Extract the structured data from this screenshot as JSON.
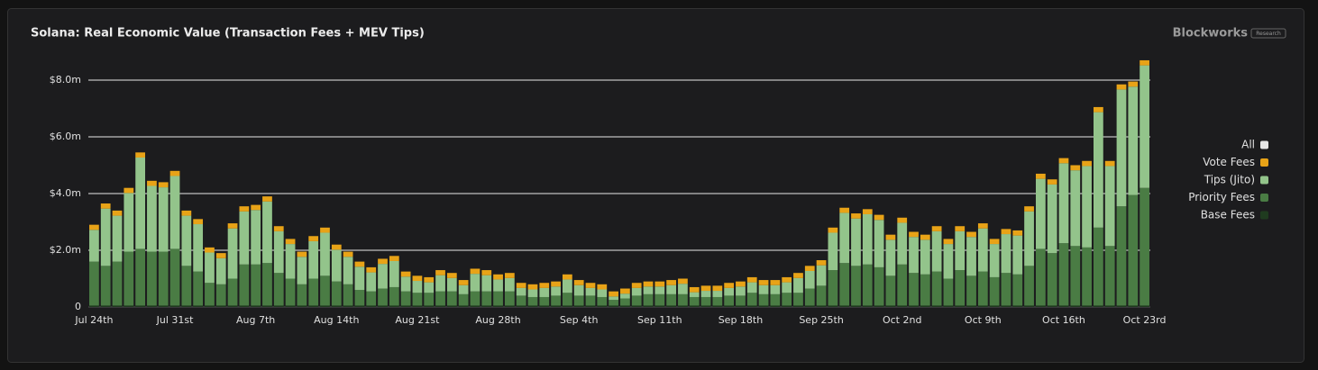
{
  "chart_data": {
    "type": "bar",
    "stacked": true,
    "title": "Solana: Real Economic Value (Transaction Fees + MEV Tips)",
    "brand": "Blockworks",
    "badge": "Research",
    "legend_toggle": {
      "label": "All",
      "color": "#e6e6e6"
    },
    "grid": true,
    "legend_position": "right",
    "categories": [
      "Jul 24th",
      null,
      null,
      null,
      null,
      null,
      null,
      "Jul 31st",
      null,
      null,
      null,
      null,
      null,
      null,
      "Aug 7th",
      null,
      null,
      null,
      null,
      null,
      null,
      "Aug 14th",
      null,
      null,
      null,
      null,
      null,
      null,
      "Aug 21st",
      null,
      null,
      null,
      null,
      null,
      null,
      "Aug 28th",
      null,
      null,
      null,
      null,
      null,
      null,
      "Sep 4th",
      null,
      null,
      null,
      null,
      null,
      null,
      "Sep 11th",
      null,
      null,
      null,
      null,
      null,
      null,
      "Sep 18th",
      null,
      null,
      null,
      null,
      null,
      null,
      "Sep 25th",
      null,
      null,
      null,
      null,
      null,
      null,
      "Oct 2nd",
      null,
      null,
      null,
      null,
      null,
      null,
      "Oct 9th",
      null,
      null,
      null,
      null,
      null,
      null,
      "Oct 16th",
      null,
      null,
      null,
      null,
      null,
      null,
      "Oct 23rd"
    ],
    "ylim": [
      0,
      9
    ],
    "yticks": [
      0,
      {
        "value": 2,
        "label": "$2.0m"
      },
      {
        "value": 4,
        "label": "$4.0m"
      },
      {
        "value": 6,
        "label": "$6.0m"
      },
      {
        "value": 8,
        "label": "$8.0m"
      }
    ],
    "series": [
      {
        "name": "Base Fees",
        "color": "#1f3b1f",
        "values": [
          0.05,
          0.05,
          0.05,
          0.05,
          0.05,
          0.05,
          0.05,
          0.05,
          0.05,
          0.05,
          0.05,
          0.05,
          0.05,
          0.05,
          0.05,
          0.05,
          0.05,
          0.05,
          0.05,
          0.05,
          0.05,
          0.05,
          0.05,
          0.05,
          0.05,
          0.05,
          0.05,
          0.05,
          0.05,
          0.05,
          0.05,
          0.05,
          0.05,
          0.05,
          0.05,
          0.05,
          0.05,
          0.05,
          0.05,
          0.05,
          0.05,
          0.05,
          0.05,
          0.05,
          0.05,
          0.05,
          0.05,
          0.05,
          0.05,
          0.05,
          0.05,
          0.05,
          0.05,
          0.05,
          0.05,
          0.05,
          0.05,
          0.05,
          0.05,
          0.05,
          0.05,
          0.05,
          0.05,
          0.05,
          0.05,
          0.05,
          0.05,
          0.05,
          0.05,
          0.05,
          0.05,
          0.05,
          0.05,
          0.05,
          0.05,
          0.05,
          0.05,
          0.05,
          0.05,
          0.05,
          0.05,
          0.05,
          0.05,
          0.05,
          0.05,
          0.05,
          0.05,
          0.05,
          0.05,
          0.05,
          0.05,
          0.05
        ]
      },
      {
        "name": "Priority Fees",
        "color": "#4a7c44",
        "values": [
          1.55,
          1.4,
          1.55,
          1.9,
          2.0,
          1.9,
          1.9,
          2.0,
          1.4,
          1.2,
          0.8,
          0.75,
          0.95,
          1.45,
          1.45,
          1.5,
          1.15,
          0.95,
          0.75,
          0.95,
          1.05,
          0.85,
          0.75,
          0.55,
          0.5,
          0.6,
          0.65,
          0.5,
          0.45,
          0.45,
          0.5,
          0.5,
          0.4,
          0.5,
          0.5,
          0.5,
          0.5,
          0.35,
          0.3,
          0.3,
          0.35,
          0.45,
          0.35,
          0.35,
          0.3,
          0.2,
          0.25,
          0.35,
          0.4,
          0.4,
          0.4,
          0.4,
          0.3,
          0.3,
          0.3,
          0.35,
          0.35,
          0.45,
          0.4,
          0.4,
          0.45,
          0.45,
          0.6,
          0.7,
          1.25,
          1.5,
          1.4,
          1.45,
          1.35,
          1.05,
          1.45,
          1.15,
          1.1,
          1.2,
          0.95,
          1.25,
          1.05,
          1.2,
          1.0,
          1.15,
          1.1,
          1.4,
          2.0,
          1.85,
          2.2,
          2.1,
          2.05,
          2.75,
          2.1,
          3.5,
          3.9,
          4.15
        ]
      },
      {
        "name": "Tips (Jito)",
        "color": "#93c48b",
        "values": [
          1.12,
          2.02,
          1.62,
          2.07,
          3.22,
          2.32,
          2.27,
          2.57,
          1.77,
          1.67,
          1.07,
          0.92,
          1.77,
          1.87,
          1.92,
          2.17,
          1.47,
          1.22,
          0.97,
          1.32,
          1.52,
          1.12,
          0.97,
          0.82,
          0.67,
          0.87,
          0.92,
          0.52,
          0.42,
          0.37,
          0.57,
          0.47,
          0.32,
          0.62,
          0.57,
          0.42,
          0.47,
          0.27,
          0.27,
          0.32,
          0.32,
          0.47,
          0.37,
          0.27,
          0.27,
          0.12,
          0.17,
          0.27,
          0.27,
          0.27,
          0.32,
          0.37,
          0.17,
          0.22,
          0.22,
          0.27,
          0.32,
          0.37,
          0.32,
          0.32,
          0.37,
          0.52,
          0.62,
          0.72,
          1.32,
          1.77,
          1.67,
          1.77,
          1.67,
          1.27,
          1.47,
          1.27,
          1.22,
          1.42,
          1.22,
          1.37,
          1.37,
          1.52,
          1.17,
          1.37,
          1.37,
          1.92,
          2.47,
          2.42,
          2.82,
          2.67,
          2.87,
          4.07,
          2.82,
          4.12,
          3.82,
          4.32
        ]
      },
      {
        "name": "Vote Fees",
        "color": "#e8a317",
        "values": [
          0.18,
          0.18,
          0.18,
          0.18,
          0.18,
          0.18,
          0.18,
          0.18,
          0.18,
          0.18,
          0.18,
          0.18,
          0.18,
          0.18,
          0.18,
          0.18,
          0.18,
          0.18,
          0.18,
          0.18,
          0.18,
          0.18,
          0.18,
          0.18,
          0.18,
          0.18,
          0.18,
          0.18,
          0.18,
          0.18,
          0.18,
          0.18,
          0.18,
          0.18,
          0.18,
          0.18,
          0.18,
          0.18,
          0.18,
          0.18,
          0.18,
          0.18,
          0.18,
          0.18,
          0.18,
          0.18,
          0.18,
          0.18,
          0.18,
          0.18,
          0.18,
          0.18,
          0.18,
          0.18,
          0.18,
          0.18,
          0.18,
          0.18,
          0.18,
          0.18,
          0.18,
          0.18,
          0.18,
          0.18,
          0.18,
          0.18,
          0.18,
          0.18,
          0.18,
          0.18,
          0.18,
          0.18,
          0.18,
          0.18,
          0.18,
          0.18,
          0.18,
          0.18,
          0.18,
          0.18,
          0.18,
          0.18,
          0.18,
          0.18,
          0.18,
          0.18,
          0.18,
          0.18,
          0.18,
          0.18,
          0.18,
          0.18
        ]
      }
    ]
  }
}
